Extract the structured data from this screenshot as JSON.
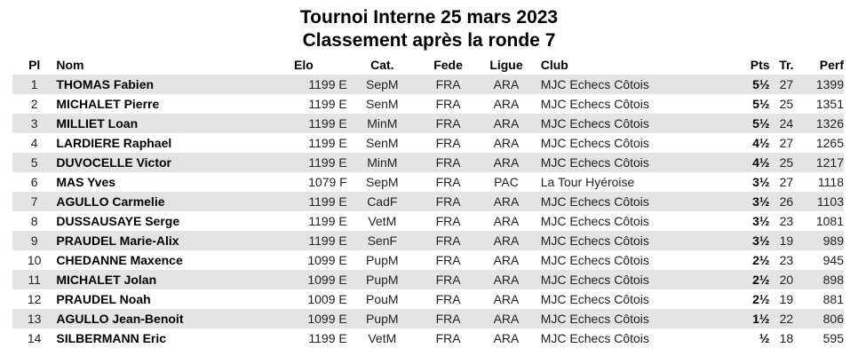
{
  "header": {
    "title": "Tournoi Interne 25 mars 2023",
    "subtitle": "Classement après la ronde 7"
  },
  "columns": {
    "pl": "Pl",
    "nom": "Nom",
    "elo": "Elo",
    "cat": "Cat.",
    "fede": "Fede",
    "ligue": "Ligue",
    "club": "Club",
    "pts": "Pts",
    "tr": "Tr.",
    "perf": "Perf"
  },
  "rows": [
    {
      "pl": "1",
      "nom": "THOMAS Fabien",
      "elo": "1199 E",
      "cat": "SepM",
      "fede": "FRA",
      "ligue": "ARA",
      "club": "MJC Echecs Côtois",
      "pts": "5½",
      "tr": "27",
      "perf": "1399"
    },
    {
      "pl": "2",
      "nom": "MICHALET Pierre",
      "elo": "1199 E",
      "cat": "SenM",
      "fede": "FRA",
      "ligue": "ARA",
      "club": "MJC Echecs Côtois",
      "pts": "5½",
      "tr": "25",
      "perf": "1351"
    },
    {
      "pl": "3",
      "nom": "MILLIET Loan",
      "elo": "1199 E",
      "cat": "MinM",
      "fede": "FRA",
      "ligue": "ARA",
      "club": "MJC Echecs Côtois",
      "pts": "5½",
      "tr": "24",
      "perf": "1326"
    },
    {
      "pl": "4",
      "nom": "LARDIERE Raphael",
      "elo": "1199 E",
      "cat": "SenM",
      "fede": "FRA",
      "ligue": "ARA",
      "club": "MJC Echecs Côtois",
      "pts": "4½",
      "tr": "27",
      "perf": "1265"
    },
    {
      "pl": "5",
      "nom": "DUVOCELLE Victor",
      "elo": "1199 E",
      "cat": "MinM",
      "fede": "FRA",
      "ligue": "ARA",
      "club": "MJC Echecs Côtois",
      "pts": "4½",
      "tr": "25",
      "perf": "1217"
    },
    {
      "pl": "6",
      "nom": "MAS Yves",
      "elo": "1079 F",
      "cat": "SepM",
      "fede": "FRA",
      "ligue": "PAC",
      "club": "La Tour Hyéroise",
      "pts": "3½",
      "tr": "27",
      "perf": "1118"
    },
    {
      "pl": "7",
      "nom": "AGULLO Carmelie",
      "elo": "1199 E",
      "cat": "CadF",
      "fede": "FRA",
      "ligue": "ARA",
      "club": "MJC Echecs Côtois",
      "pts": "3½",
      "tr": "26",
      "perf": "1103"
    },
    {
      "pl": "8",
      "nom": "DUSSAUSAYE Serge",
      "elo": "1199 E",
      "cat": "VetM",
      "fede": "FRA",
      "ligue": "ARA",
      "club": "MJC Echecs Côtois",
      "pts": "3½",
      "tr": "23",
      "perf": "1081"
    },
    {
      "pl": "9",
      "nom": "PRAUDEL Marie-Alix",
      "elo": "1199 E",
      "cat": "SenF",
      "fede": "FRA",
      "ligue": "ARA",
      "club": "MJC Echecs Côtois",
      "pts": "3½",
      "tr": "19",
      "perf": "989"
    },
    {
      "pl": "10",
      "nom": "CHEDANNE Maxence",
      "elo": "1099 E",
      "cat": "PupM",
      "fede": "FRA",
      "ligue": "ARA",
      "club": "MJC Echecs Côtois",
      "pts": "2½",
      "tr": "23",
      "perf": "945"
    },
    {
      "pl": "11",
      "nom": "MICHALET Jolan",
      "elo": "1099 E",
      "cat": "PupM",
      "fede": "FRA",
      "ligue": "ARA",
      "club": "MJC Echecs Côtois",
      "pts": "2½",
      "tr": "20",
      "perf": "898"
    },
    {
      "pl": "12",
      "nom": "PRAUDEL Noah",
      "elo": "1009 E",
      "cat": "PouM",
      "fede": "FRA",
      "ligue": "ARA",
      "club": "MJC Echecs Côtois",
      "pts": "2½",
      "tr": "19",
      "perf": "881"
    },
    {
      "pl": "13",
      "nom": "AGULLO Jean-Benoit",
      "elo": "1099 E",
      "cat": "PupM",
      "fede": "FRA",
      "ligue": "ARA",
      "club": "MJC Echecs Côtois",
      "pts": "1½",
      "tr": "22",
      "perf": "806"
    },
    {
      "pl": "14",
      "nom": "SILBERMANN Eric",
      "elo": "1199 E",
      "cat": "VetM",
      "fede": "FRA",
      "ligue": "ARA",
      "club": "MJC Echecs Côtois",
      "pts": "½",
      "tr": "18",
      "perf": "595"
    }
  ]
}
